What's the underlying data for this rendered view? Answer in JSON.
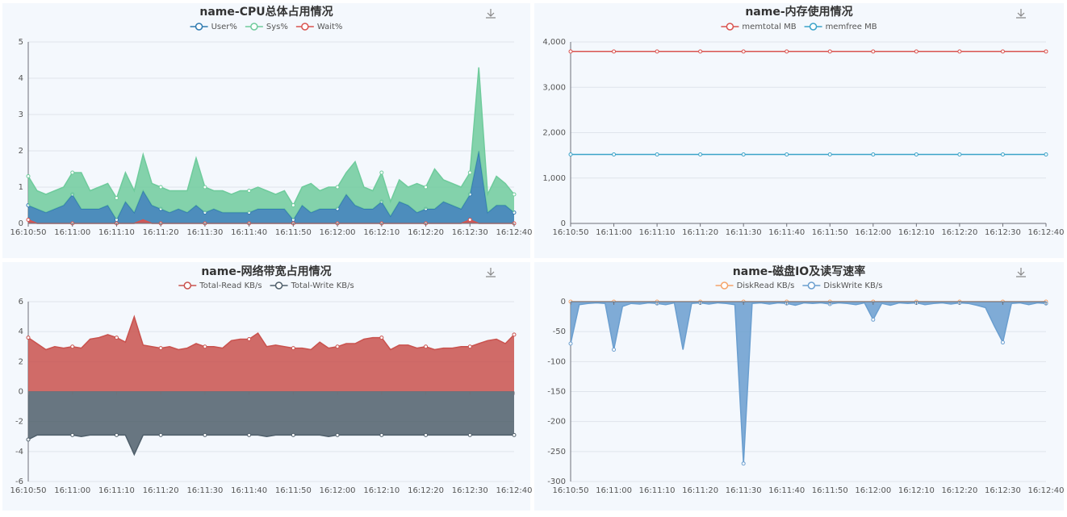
{
  "chart_data": [
    {
      "type": "line",
      "title": "name-CPU总体占用情况",
      "categories": [
        "16:10:50",
        null,
        null,
        null,
        null,
        "16:11:00",
        null,
        null,
        null,
        null,
        "16:11:10",
        null,
        null,
        null,
        null,
        "16:11:20",
        null,
        null,
        null,
        null,
        "16:11:30",
        null,
        null,
        null,
        null,
        "16:11:40",
        null,
        null,
        null,
        null,
        "16:11:50",
        null,
        null,
        null,
        null,
        "16:12:00",
        null,
        null,
        null,
        null,
        "16:12:10",
        null,
        null,
        null,
        null,
        "16:12:20",
        null,
        null,
        null,
        null,
        "16:12:30",
        null,
        null,
        null,
        null,
        "16:12:40"
      ],
      "series": [
        {
          "name": "User%",
          "color": "#2f7ab0",
          "area": true,
          "stack": "cpu",
          "values": [
            0.5,
            0.4,
            0.3,
            0.4,
            0.5,
            0.8,
            0.4,
            0.4,
            0.4,
            0.5,
            0.1,
            0.6,
            0.3,
            0.9,
            0.5,
            0.4,
            0.3,
            0.4,
            0.3,
            0.5,
            0.3,
            0.4,
            0.3,
            0.3,
            0.3,
            0.3,
            0.4,
            0.4,
            0.4,
            0.4,
            0.1,
            0.5,
            0.3,
            0.4,
            0.4,
            0.4,
            0.8,
            0.5,
            0.4,
            0.4,
            0.6,
            0.2,
            0.6,
            0.5,
            0.3,
            0.4,
            0.4,
            0.6,
            0.5,
            0.4,
            0.8,
            2.0,
            0.3,
            0.5,
            0.5,
            0.3
          ]
        },
        {
          "name": "Sys%",
          "color": "#6fcb9c",
          "area": true,
          "stack": "cpu",
          "values": [
            0.8,
            0.5,
            0.5,
            0.5,
            0.5,
            0.6,
            1.0,
            0.5,
            0.6,
            0.6,
            0.6,
            0.8,
            0.6,
            1.0,
            0.6,
            0.6,
            0.6,
            0.5,
            0.6,
            1.3,
            0.7,
            0.5,
            0.6,
            0.5,
            0.6,
            0.6,
            0.6,
            0.5,
            0.4,
            0.5,
            0.4,
            0.5,
            0.8,
            0.5,
            0.6,
            0.6,
            0.6,
            1.2,
            0.6,
            0.5,
            0.8,
            0.4,
            0.6,
            0.5,
            0.8,
            0.6,
            1.1,
            0.6,
            0.6,
            0.6,
            0.6,
            2.3,
            0.5,
            0.8,
            0.6,
            0.5
          ]
        },
        {
          "name": "Wait%",
          "color": "#d9534f",
          "area": true,
          "values": [
            0.1,
            0,
            0,
            0,
            0,
            0,
            0,
            0,
            0,
            0,
            0,
            0,
            0,
            0.1,
            0,
            0,
            0,
            0,
            0,
            0,
            0,
            0,
            0,
            0,
            0,
            0,
            0,
            0,
            0,
            0,
            0,
            0,
            0,
            0,
            0,
            0,
            0,
            0,
            0,
            0,
            0,
            0,
            0,
            0,
            0,
            0,
            0,
            0,
            0,
            0,
            0.1,
            0,
            0,
            0,
            0,
            0
          ]
        }
      ],
      "ylim": [
        0,
        5
      ],
      "yticks": [
        0,
        1,
        2,
        3,
        4,
        5
      ],
      "grid": true
    },
    {
      "type": "line",
      "title": "name-内存使用情况",
      "categories": [
        "16:10:50",
        "16:11:00",
        "16:11:10",
        "16:11:20",
        "16:11:30",
        "16:11:40",
        "16:11:50",
        "16:12:00",
        "16:12:10",
        "16:12:20",
        "16:12:30",
        "16:12:40"
      ],
      "series": [
        {
          "name": "memtotal MB",
          "color": "#d9534f",
          "area": false,
          "values": [
            3790,
            3790,
            3790,
            3790,
            3790,
            3790,
            3790,
            3790,
            3790,
            3790,
            3790,
            3790
          ]
        },
        {
          "name": "memfree MB",
          "color": "#3ba3c9",
          "area": false,
          "values": [
            1520,
            1520,
            1520,
            1520,
            1520,
            1520,
            1520,
            1520,
            1520,
            1520,
            1520,
            1520
          ]
        }
      ],
      "ylim": [
        0,
        4000
      ],
      "yticks": [
        0,
        {
          "value": 1000,
          "label": "1,000"
        },
        {
          "value": 2000,
          "label": "2,000"
        },
        {
          "value": 3000,
          "label": "3,000"
        },
        {
          "value": 4000,
          "label": "4,000"
        }
      ],
      "grid": true
    },
    {
      "type": "line",
      "title": "name-网络带宽占用情况",
      "categories": [
        "16:10:50",
        null,
        null,
        null,
        null,
        "16:11:00",
        null,
        null,
        null,
        null,
        "16:11:10",
        null,
        null,
        null,
        null,
        "16:11:20",
        null,
        null,
        null,
        null,
        "16:11:30",
        null,
        null,
        null,
        null,
        "16:11:40",
        null,
        null,
        null,
        null,
        "16:11:50",
        null,
        null,
        null,
        null,
        "16:12:00",
        null,
        null,
        null,
        null,
        "16:12:10",
        null,
        null,
        null,
        null,
        "16:12:20",
        null,
        null,
        null,
        null,
        "16:12:30",
        null,
        null,
        null,
        null,
        "16:12:40"
      ],
      "series": [
        {
          "name": "Total-Read KB/s",
          "color": "#c9524e",
          "area": true,
          "values": [
            3.6,
            3.2,
            2.8,
            3.0,
            2.9,
            3.0,
            2.9,
            3.5,
            3.6,
            3.8,
            3.6,
            3.3,
            5.0,
            3.1,
            3.0,
            2.9,
            3.0,
            2.8,
            2.9,
            3.2,
            3.0,
            3.0,
            2.9,
            3.4,
            3.5,
            3.5,
            3.9,
            3.0,
            3.1,
            3.0,
            2.9,
            2.9,
            2.8,
            3.3,
            2.9,
            3.0,
            3.2,
            3.2,
            3.5,
            3.6,
            3.6,
            2.8,
            3.1,
            3.1,
            2.9,
            3.0,
            2.8,
            2.9,
            2.9,
            3.0,
            3.0,
            3.2,
            3.4,
            3.5,
            3.2,
            3.8
          ]
        },
        {
          "name": "Total-Write KB/s",
          "color": "#4f5f6b",
          "area": true,
          "values": [
            -3.2,
            -2.9,
            -2.9,
            -2.9,
            -2.9,
            -2.9,
            -3.0,
            -2.9,
            -2.9,
            -2.9,
            -2.9,
            -2.9,
            -4.2,
            -2.9,
            -2.9,
            -2.9,
            -2.9,
            -2.9,
            -2.9,
            -2.9,
            -2.9,
            -2.9,
            -2.9,
            -2.9,
            -2.9,
            -2.9,
            -2.9,
            -3.0,
            -2.9,
            -2.9,
            -2.9,
            -2.9,
            -2.9,
            -2.9,
            -3.0,
            -2.9,
            -2.9,
            -2.9,
            -2.9,
            -2.9,
            -2.9,
            -2.9,
            -2.9,
            -2.9,
            -2.9,
            -2.9,
            -2.9,
            -2.9,
            -2.9,
            -2.9,
            -2.9,
            -2.9,
            -2.9,
            -2.9,
            -2.9,
            -2.9
          ]
        }
      ],
      "ylim": [
        -6,
        6
      ],
      "yticks": [
        -6,
        -4,
        -2,
        0,
        2,
        4,
        6
      ],
      "grid": true
    },
    {
      "type": "line",
      "title": "name-磁盘IO及读写速率",
      "categories": [
        "16:10:50",
        null,
        null,
        null,
        null,
        "16:11:00",
        null,
        null,
        null,
        null,
        "16:11:10",
        null,
        null,
        null,
        null,
        "16:11:20",
        null,
        null,
        null,
        null,
        "16:11:30",
        null,
        null,
        null,
        null,
        "16:11:40",
        null,
        null,
        null,
        null,
        "16:11:50",
        null,
        null,
        null,
        null,
        "16:12:00",
        null,
        null,
        null,
        null,
        "16:12:10",
        null,
        null,
        null,
        null,
        "16:12:20",
        null,
        null,
        null,
        null,
        "16:12:30",
        null,
        null,
        null,
        null,
        "16:12:40"
      ],
      "series": [
        {
          "name": "DiskRead KB/s",
          "color": "#f5a46b",
          "area": false,
          "values": [
            0,
            0,
            0,
            0,
            0,
            0,
            0,
            0,
            0,
            0,
            0,
            0,
            0,
            0,
            0,
            0,
            0,
            0,
            0,
            0,
            0,
            0,
            0,
            0,
            0,
            0,
            0,
            0,
            0,
            0,
            0,
            0,
            0,
            0,
            0,
            0,
            0,
            0,
            0,
            0,
            0,
            0,
            0,
            0,
            0,
            0,
            0,
            0,
            0,
            0,
            0,
            0,
            0,
            0,
            0,
            0
          ]
        },
        {
          "name": "DiskWrite KB/s",
          "color": "#6a9ecf",
          "area": true,
          "values": [
            -70,
            -5,
            -3,
            -2,
            -3,
            -80,
            -8,
            -3,
            -4,
            -2,
            -3,
            -5,
            -2,
            -80,
            -3,
            -2,
            -4,
            -2,
            -3,
            -5,
            -270,
            -3,
            -2,
            -4,
            -2,
            -3,
            -6,
            -2,
            -3,
            -2,
            -4,
            -2,
            -3,
            -5,
            -2,
            -30,
            -3,
            -6,
            -2,
            -3,
            -2,
            -5,
            -3,
            -2,
            -4,
            -2,
            -3,
            -6,
            -10,
            -40,
            -68,
            -3,
            -2,
            -5,
            -2,
            -3
          ]
        }
      ],
      "ylim": [
        -300,
        0
      ],
      "yticks": [
        -300,
        -250,
        -200,
        -150,
        -100,
        -50,
        0
      ],
      "grid": true
    }
  ]
}
